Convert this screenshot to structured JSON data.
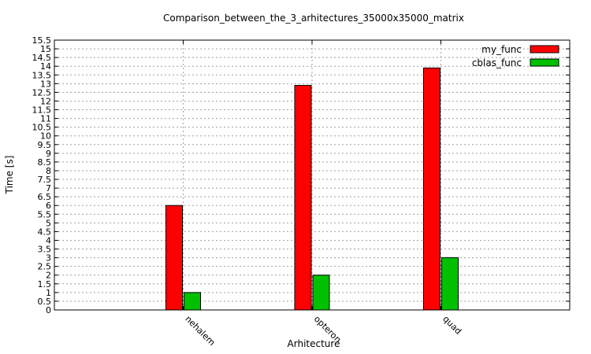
{
  "chart_data": {
    "type": "bar",
    "title": "Comparison_between_the_3_arhitectures_35000x35000_matrix",
    "xlabel": "Arhitecture",
    "ylabel": "Time [s]",
    "categories": [
      "nehalem",
      "opteron",
      "quad"
    ],
    "series": [
      {
        "name": "my_func",
        "color": "#ff0000",
        "values": [
          6,
          12.9,
          13.9
        ]
      },
      {
        "name": "cblas_func",
        "color": "#00c000",
        "values": [
          1,
          2,
          3
        ]
      }
    ],
    "ylim": [
      0,
      15.5
    ],
    "ytick_step": 0.5,
    "grid": true,
    "legend": "top-right"
  }
}
